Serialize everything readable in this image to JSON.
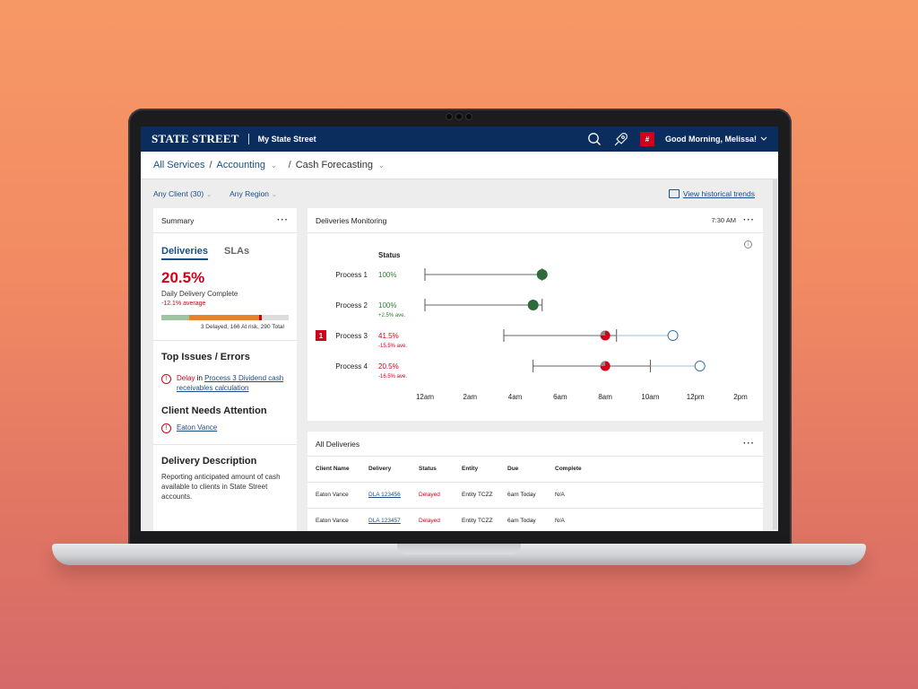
{
  "header": {
    "logo": "STATE STREET",
    "app_name": "My State Street",
    "badge": "#",
    "greeting": "Good Morning, Melissa!"
  },
  "breadcrumb": {
    "items": [
      "All Services",
      "Accounting",
      "Cash Forecasting"
    ]
  },
  "filters": {
    "client": "Any Client (30)",
    "region": "Any Region",
    "trends_link": "View historical trends"
  },
  "summary": {
    "title": "Summary",
    "tabs": [
      "Deliveries",
      "SLAs"
    ],
    "pct": "20.5%",
    "pct_label": "Daily Delivery Complete",
    "average": "-12.1% average",
    "progress": {
      "completed": 0.22,
      "at_risk": 0.55,
      "delayed": 0.02
    },
    "progress_text": "3 Delayed, 166 At risk, 290 Total",
    "issues_title": "Top Issues / Errors",
    "issue_status": "Delay",
    "issue_in": "in",
    "issue_link": "Process 3 Dividend cash receivables calculation",
    "attention_title": "Client Needs Attention",
    "attention_link": "Eaton Vance",
    "desc_title": "Delivery Description",
    "desc_text": "Reporting anticipated amount of cash available to clients in State Street accounts."
  },
  "monitoring": {
    "title": "Deliveries Monitoring",
    "time": "7:30 AM",
    "status_header": "Status",
    "alert_count": "1",
    "processes": [
      {
        "name": "Process 1",
        "status": "100%",
        "change": "",
        "status_color": "#2e7d32"
      },
      {
        "name": "Process 2",
        "status": "100%",
        "change": "+2.5% ave.",
        "status_color": "#2e7d32"
      },
      {
        "name": "Process 3",
        "status": "41.5%",
        "change": "-15.5% ave.",
        "status_color": "#d0021b"
      },
      {
        "name": "Process 4",
        "status": "20.5%",
        "change": "-16.5% ave.",
        "status_color": "#d0021b"
      }
    ],
    "time_axis": [
      "12am",
      "2am",
      "4am",
      "6am",
      "8am",
      "10am",
      "12pm",
      "2pm"
    ]
  },
  "chart_data": {
    "type": "scatter",
    "title": "Deliveries Monitoring",
    "categories": [
      "Process 1",
      "Process 2",
      "Process 3",
      "Process 4"
    ],
    "x_ticks": [
      "12am",
      "2am",
      "4am",
      "6am",
      "8am",
      "10am",
      "12pm",
      "2pm"
    ],
    "xlim_hours": [
      0,
      14
    ],
    "series": [
      {
        "process": "Process 1",
        "start_hour": 0,
        "current_hour": 5.2,
        "end_hour": 5.2,
        "state": "complete"
      },
      {
        "process": "Process 2",
        "start_hour": 0,
        "current_hour": 4.8,
        "end_hour": 5.2,
        "state": "complete"
      },
      {
        "process": "Process 3",
        "start_hour": 3.5,
        "current_hour": 8.0,
        "marker_hour": 8.5,
        "end_hour": 11.0,
        "state": "at-risk"
      },
      {
        "process": "Process 4",
        "start_hour": 4.8,
        "current_hour": 8.0,
        "marker_hour": 10.0,
        "end_hour": 12.2,
        "state": "at-risk"
      }
    ]
  },
  "all_deliveries": {
    "title": "All Deliveries",
    "columns": [
      "Client Name",
      "Delivery",
      "Status",
      "Entity",
      "Due",
      "Complete"
    ],
    "rows": [
      [
        "Eaton Vance",
        "DLA 123456",
        "Delayed",
        "Entity TCZZ",
        "6am Today",
        "N/A"
      ],
      [
        "Eaton Vance",
        "DLA 123457",
        "Delayed",
        "Entity TCZZ",
        "6am Today",
        "N/A"
      ]
    ]
  },
  "colors": {
    "navy": "#0b2d5e",
    "link": "#1b4d86",
    "alert": "#d0021b",
    "ok": "#2e7d32",
    "risk": "#e7822b"
  }
}
